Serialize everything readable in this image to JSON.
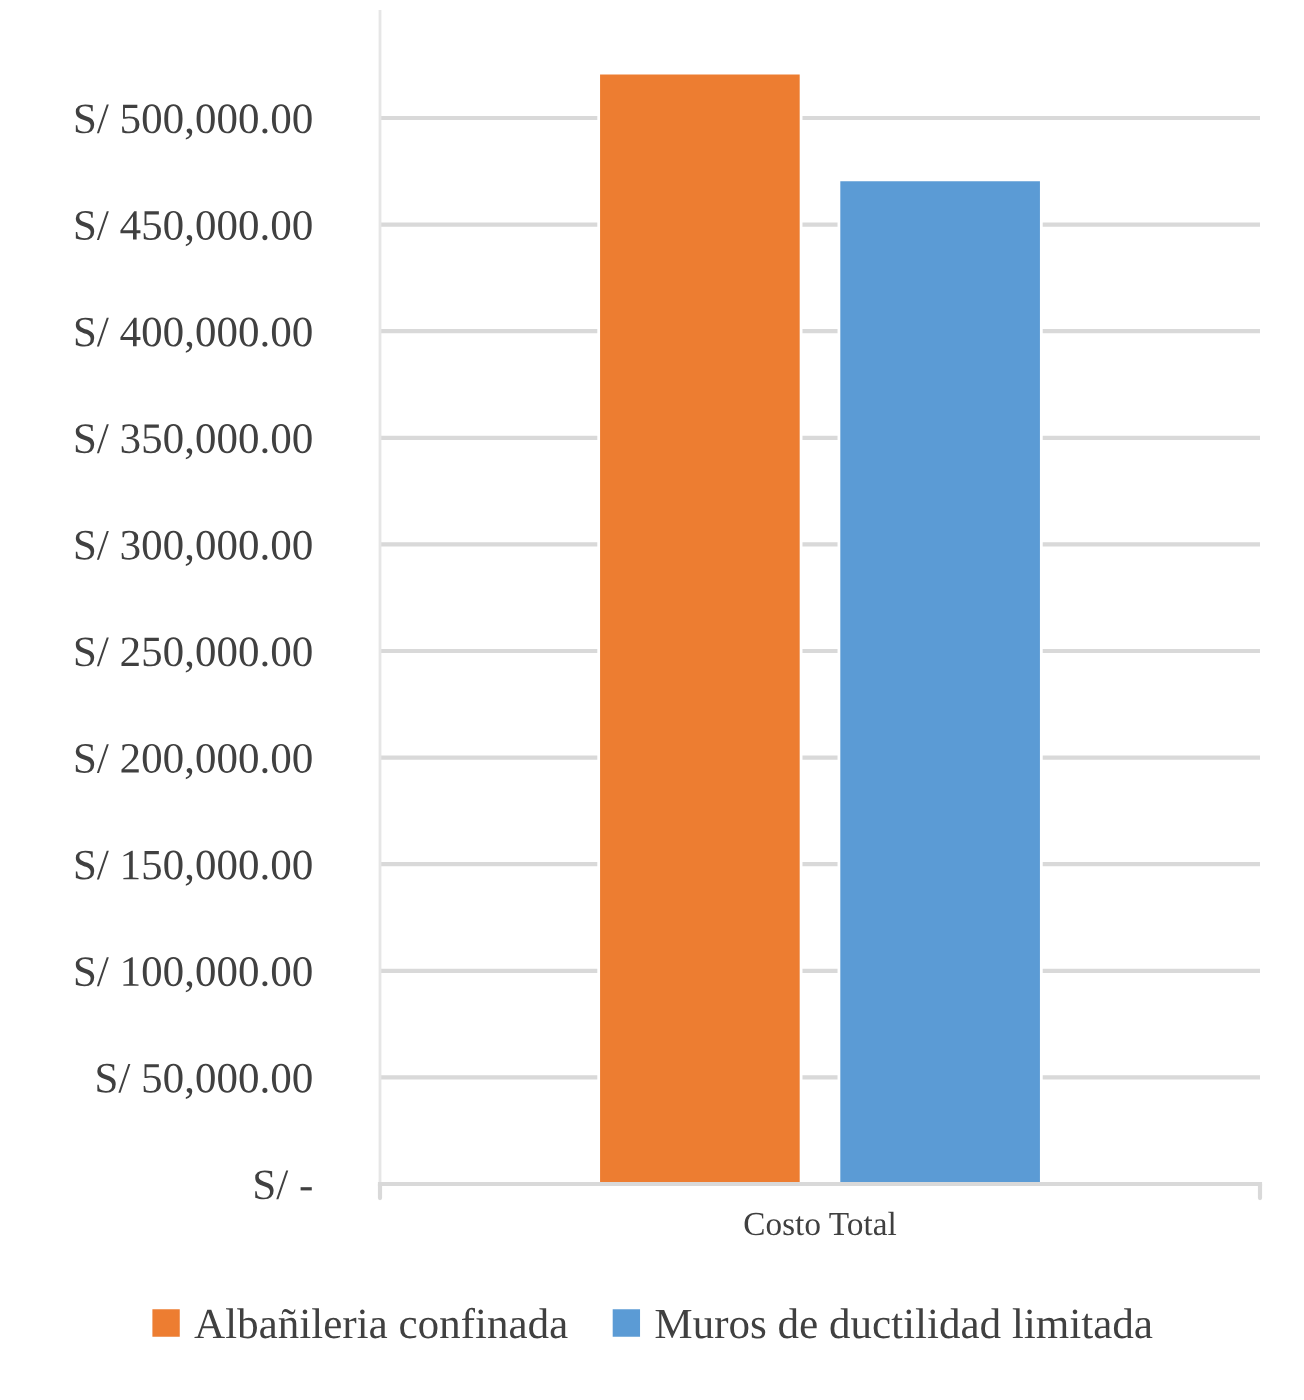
{
  "chart_data": {
    "type": "bar",
    "categories": [
      "Costo Total"
    ],
    "series": [
      {
        "name": "Albañileria confinada",
        "color": "#ed7d31",
        "values": [
          521000
        ]
      },
      {
        "name": "Muros de ductilidad limitada",
        "color": "#5b9bd5",
        "values": [
          471000
        ]
      }
    ],
    "ylim": [
      0,
      550000
    ],
    "yticks": [
      {
        "value": 0,
        "label": "S/ -"
      },
      {
        "value": 50000,
        "label": "S/ 50,000.00"
      },
      {
        "value": 100000,
        "label": "S/ 100,000.00"
      },
      {
        "value": 150000,
        "label": "S/ 150,000.00"
      },
      {
        "value": 200000,
        "label": "S/ 200,000.00"
      },
      {
        "value": 250000,
        "label": "S/ 250,000.00"
      },
      {
        "value": 300000,
        "label": "S/ 300,000.00"
      },
      {
        "value": 350000,
        "label": "S/ 350,000.00"
      },
      {
        "value": 400000,
        "label": "S/ 400,000.00"
      },
      {
        "value": 450000,
        "label": "S/ 450,000.00"
      },
      {
        "value": 500000,
        "label": "S/ 500,000.00"
      }
    ],
    "grid": "y",
    "legend": "bottom"
  }
}
